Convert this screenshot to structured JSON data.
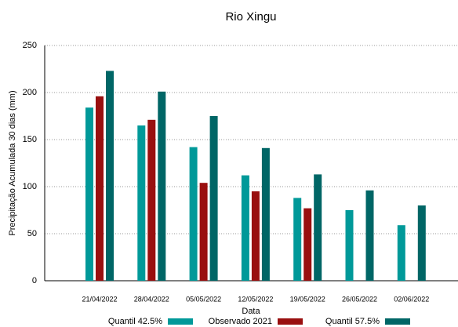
{
  "chart_data": {
    "type": "bar",
    "title": "Rio Xingu",
    "x_label": "Data",
    "y_label": "Precipitação Acumulada 30 dias (mm)",
    "categories": [
      "21/04/2022",
      "28/04/2022",
      "05/05/2022",
      "12/05/2022",
      "19/05/2022",
      "26/05/2022",
      "02/06/2022"
    ],
    "series": [
      {
        "name": "Quantil 42.5%",
        "color": "#009999",
        "values": [
          184,
          165,
          142,
          112,
          88,
          75,
          59
        ]
      },
      {
        "name": "Observado 2021",
        "color": "#990f0f",
        "values": [
          196,
          171,
          104,
          95,
          77,
          null,
          null
        ]
      },
      {
        "name": "Quantil 57.5%",
        "color": "#006666",
        "values": [
          223,
          201,
          175,
          141,
          113,
          96,
          80
        ]
      }
    ],
    "ylim": [
      0,
      250
    ],
    "yticks": [
      0,
      50,
      100,
      150,
      200,
      250
    ],
    "grid": true,
    "legend": "bottom"
  }
}
